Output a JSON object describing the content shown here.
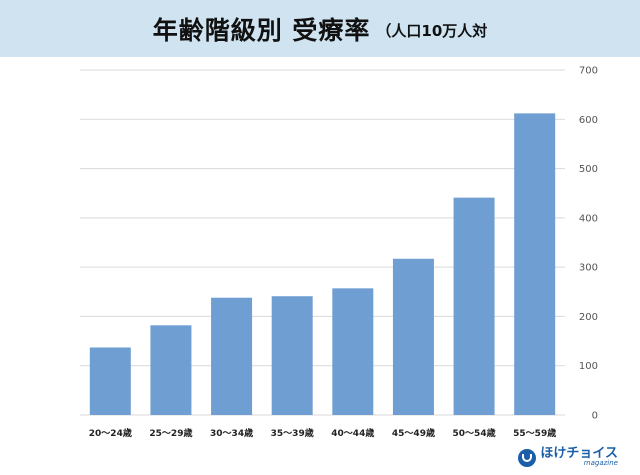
{
  "header": {
    "title": "年齢階級別 受療率",
    "unit": "（人口10万人対"
  },
  "logo": {
    "name": "ほけチョイス",
    "sub": "magazine"
  },
  "chart_data": {
    "type": "bar",
    "categories": [
      "20～24歳",
      "25～29歳",
      "30～34歳",
      "35～39歳",
      "40～44歳",
      "45～49歳",
      "50～54歳",
      "55～59歳"
    ],
    "values": [
      137,
      182,
      238,
      241,
      257,
      317,
      441,
      612
    ],
    "yticks": [
      0,
      100,
      200,
      300,
      400,
      500,
      600,
      700
    ],
    "ylim": [
      0,
      700
    ],
    "grid": true,
    "bar_color": "#6f9fd2",
    "grid_color": "#d9d9d9"
  }
}
